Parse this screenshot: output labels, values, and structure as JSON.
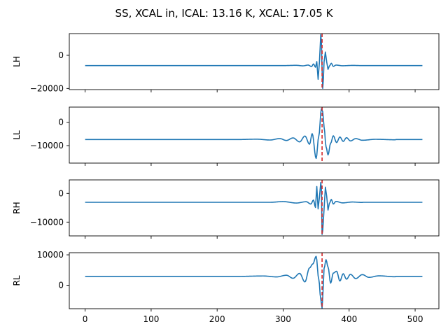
{
  "chart_data": {
    "type": "line",
    "title": "SS, XCAL in, ICAL: 13.16 K, XCAL: 17.05 K",
    "xlabel": "",
    "xlim": [
      -24,
      536
    ],
    "x_ticks": [
      0,
      100,
      200,
      300,
      400,
      500
    ],
    "x_tick_labels": [
      "0",
      "100",
      "200",
      "300",
      "400",
      "500"
    ],
    "x_count": 512,
    "marker": {
      "x": 359,
      "color": "#d62728",
      "style": "dashed"
    },
    "line_color": "#1f77b4",
    "panels": [
      {
        "ylabel": "LH",
        "ylim": [
          -20700,
          13100
        ],
        "yticks": [
          0,
          -20000
        ],
        "ytick_labels": [
          "0",
          "−20000"
        ],
        "baseline": -6200,
        "points": [
          [
            300,
            -6200
          ],
          [
            320,
            -6050
          ],
          [
            330,
            -6350
          ],
          [
            338,
            -5900
          ],
          [
            343,
            -6800
          ],
          [
            346,
            -5200
          ],
          [
            349,
            -7200
          ],
          [
            351,
            -3800
          ],
          [
            353,
            -14500
          ],
          [
            355,
            -4000
          ],
          [
            357,
            12500
          ],
          [
            358,
            8000
          ],
          [
            359,
            -9000
          ],
          [
            360,
            -20000
          ],
          [
            361,
            -14000
          ],
          [
            362,
            -4000
          ],
          [
            364,
            2000
          ],
          [
            366,
            -4000
          ],
          [
            368,
            -8500
          ],
          [
            370,
            -6500
          ],
          [
            373,
            -4800
          ],
          [
            376,
            -6700
          ],
          [
            380,
            -5900
          ],
          [
            390,
            -6300
          ],
          [
            405,
            -6100
          ],
          [
            420,
            -6200
          ]
        ]
      },
      {
        "ylabel": "LL",
        "ylim": [
          -17500,
          6500
        ],
        "yticks": [
          0,
          -10000
        ],
        "ytick_labels": [
          "0",
          "−10000"
        ],
        "baseline": -7400,
        "points": [
          [
            230,
            -7400
          ],
          [
            260,
            -7250
          ],
          [
            280,
            -7600
          ],
          [
            295,
            -7000
          ],
          [
            305,
            -7800
          ],
          [
            315,
            -6700
          ],
          [
            325,
            -8400
          ],
          [
            333,
            -5900
          ],
          [
            340,
            -9400
          ],
          [
            344,
            -4900
          ],
          [
            350,
            -15500
          ],
          [
            354,
            -6000
          ],
          [
            358,
            5800
          ],
          [
            360,
            4500
          ],
          [
            362,
            -2000
          ],
          [
            365,
            -10500
          ],
          [
            368,
            -14000
          ],
          [
            372,
            -9000
          ],
          [
            376,
            -5800
          ],
          [
            381,
            -8700
          ],
          [
            386,
            -6300
          ],
          [
            391,
            -8200
          ],
          [
            396,
            -6600
          ],
          [
            402,
            -8000
          ],
          [
            410,
            -7000
          ],
          [
            420,
            -7700
          ],
          [
            440,
            -7300
          ],
          [
            470,
            -7500
          ]
        ]
      },
      {
        "ylabel": "RH",
        "ylim": [
          -14800,
          4700
        ],
        "yticks": [
          0,
          -10000
        ],
        "ytick_labels": [
          "0",
          "−10000"
        ],
        "baseline": -3100,
        "points": [
          [
            280,
            -3100
          ],
          [
            300,
            -2850
          ],
          [
            320,
            -3350
          ],
          [
            335,
            -2900
          ],
          [
            342,
            -3700
          ],
          [
            346,
            -2300
          ],
          [
            349,
            -4900
          ],
          [
            351,
            2400
          ],
          [
            353,
            -5400
          ],
          [
            355,
            -1300
          ],
          [
            357,
            3800
          ],
          [
            358,
            1500
          ],
          [
            359,
            -14300
          ],
          [
            360,
            -13000
          ],
          [
            362,
            -5500
          ],
          [
            364,
            2200
          ],
          [
            366,
            -1000
          ],
          [
            368,
            -5800
          ],
          [
            370,
            -3500
          ],
          [
            373,
            -2100
          ],
          [
            376,
            -3700
          ],
          [
            380,
            -2800
          ],
          [
            390,
            -3300
          ],
          [
            405,
            -3000
          ],
          [
            420,
            -3150
          ]
        ]
      },
      {
        "ylabel": "RL",
        "ylim": [
          -7700,
          10700
        ],
        "yticks": [
          10000,
          0
        ],
        "ytick_labels": [
          "10000",
          "0"
        ],
        "baseline": 2900,
        "points": [
          [
            230,
            2900
          ],
          [
            270,
            3050
          ],
          [
            290,
            2750
          ],
          [
            305,
            3300
          ],
          [
            315,
            2300
          ],
          [
            325,
            3900
          ],
          [
            333,
            1100
          ],
          [
            340,
            5700
          ],
          [
            345,
            7000
          ],
          [
            350,
            9500
          ],
          [
            354,
            2000
          ],
          [
            357,
            -4500
          ],
          [
            359,
            -7500
          ],
          [
            360,
            -4000
          ],
          [
            362,
            5500
          ],
          [
            365,
            8400
          ],
          [
            368,
            6000
          ],
          [
            372,
            700
          ],
          [
            376,
            4000
          ],
          [
            381,
            4600
          ],
          [
            386,
            1400
          ],
          [
            391,
            3800
          ],
          [
            396,
            2000
          ],
          [
            402,
            3600
          ],
          [
            410,
            2200
          ],
          [
            420,
            3500
          ],
          [
            430,
            2600
          ],
          [
            445,
            3100
          ],
          [
            470,
            2800
          ]
        ]
      }
    ]
  }
}
